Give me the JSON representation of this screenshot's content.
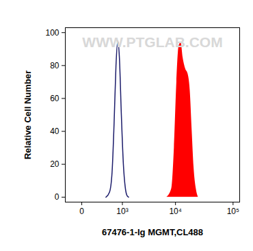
{
  "chart_data": {
    "type": "histogram",
    "xlabel": "67476-1-Ig MGMT,CL488",
    "ylabel": "Relative Cell Number",
    "annotation": "WWW.PTGLAB.COM",
    "log": "x",
    "xlim": [
      -230,
      130000
    ],
    "xticks": [
      0,
      {
        "value": 1000,
        "label": "10³"
      },
      {
        "value": 10000,
        "label": "10⁴"
      },
      {
        "value": 100000,
        "label": "10⁵"
      }
    ],
    "ylim": [
      -3,
      103
    ],
    "yticks": [
      0,
      20,
      40,
      60,
      80,
      100
    ],
    "grid": false,
    "series": [
      {
        "type": "line",
        "color": "#1c1c6b",
        "x": [
          400,
          500,
          580,
          650,
          720,
          790,
          860,
          950,
          1050,
          1150,
          1250,
          1350
        ],
        "values": [
          0,
          3,
          15,
          45,
          80,
          95,
          85,
          50,
          20,
          6,
          1,
          0
        ]
      },
      {
        "type": "area",
        "color": "#ff0000",
        "x": [
          7000,
          8500,
          9500,
          10500,
          11500,
          12500,
          13500,
          15000,
          16500,
          18000,
          19500,
          21000,
          23000,
          25000
        ],
        "values": [
          0,
          5,
          30,
          70,
          92,
          94,
          85,
          78,
          75,
          65,
          40,
          18,
          5,
          0
        ]
      }
    ]
  }
}
